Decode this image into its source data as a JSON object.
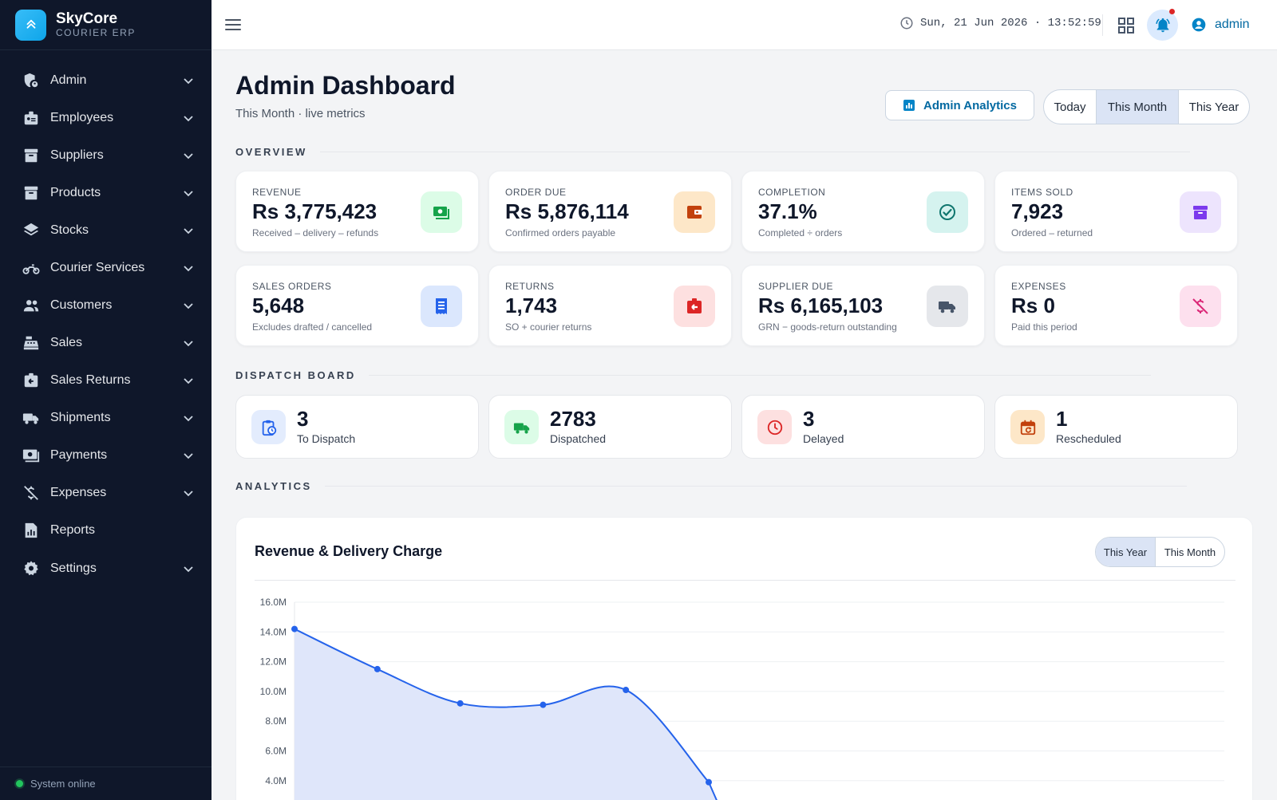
{
  "brand": {
    "name": "SkyCore",
    "sub": "COURIER ERP",
    "logo_icon": "chevrons-up-icon"
  },
  "sidebar": {
    "items": [
      {
        "label": "Admin",
        "icon": "shield-user-icon",
        "has_children": true
      },
      {
        "label": "Employees",
        "icon": "id-badge-icon",
        "has_children": true
      },
      {
        "label": "Suppliers",
        "icon": "archive-box-icon",
        "has_children": true
      },
      {
        "label": "Products",
        "icon": "box-icon",
        "has_children": true
      },
      {
        "label": "Stocks",
        "icon": "layers-icon",
        "has_children": true
      },
      {
        "label": "Courier Services",
        "icon": "motorcycle-icon",
        "has_children": true
      },
      {
        "label": "Customers",
        "icon": "users-icon",
        "has_children": true
      },
      {
        "label": "Sales",
        "icon": "cash-register-icon",
        "has_children": true
      },
      {
        "label": "Sales Returns",
        "icon": "return-box-icon",
        "has_children": true
      },
      {
        "label": "Shipments",
        "icon": "truck-icon",
        "has_children": true
      },
      {
        "label": "Payments",
        "icon": "money-icon",
        "has_children": true
      },
      {
        "label": "Expenses",
        "icon": "no-money-icon",
        "has_children": true
      },
      {
        "label": "Reports",
        "icon": "report-icon",
        "has_children": false
      },
      {
        "label": "Settings",
        "icon": "gear-icon",
        "has_children": true
      }
    ],
    "status": "System online"
  },
  "topbar": {
    "datetime": "Sun, 21 Jun 2026 · 13:52:59",
    "user": "admin"
  },
  "page": {
    "title": "Admin Dashboard",
    "subtitle": "This Month · live metrics",
    "analytics_button": "Admin Analytics",
    "ranges": [
      "Today",
      "This Month",
      "This Year"
    ],
    "active_range": "This Month"
  },
  "sections": {
    "overview": "OVERVIEW",
    "dispatch": "DISPATCH BOARD",
    "analytics": "ANALYTICS"
  },
  "kpis": [
    {
      "label": "REVENUE",
      "value": "Rs 3,775,423",
      "sub": "Received – delivery – refunds",
      "icon": "cash-icon",
      "color": "#16a34a",
      "bg": "#dcfce7"
    },
    {
      "label": "ORDER DUE",
      "value": "Rs 5,876,114",
      "sub": "Confirmed orders payable",
      "icon": "wallet-icon",
      "color": "#c2410c",
      "bg": "#fde7c8"
    },
    {
      "label": "COMPLETION",
      "value": "37.1%",
      "sub": "Completed ÷ orders",
      "icon": "check-circle-icon",
      "color": "#0f766e",
      "bg": "#d5f3ef"
    },
    {
      "label": "ITEMS SOLD",
      "value": "7,923",
      "sub": "Ordered – returned",
      "icon": "archive-icon",
      "color": "#7c3aed",
      "bg": "#ede4fd"
    },
    {
      "label": "SALES ORDERS",
      "value": "5,648",
      "sub": "Excludes drafted / cancelled",
      "icon": "receipt-icon",
      "color": "#2563eb",
      "bg": "#dbe7fd"
    },
    {
      "label": "RETURNS",
      "value": "1,743",
      "sub": "SO + courier returns",
      "icon": "return-icon",
      "color": "#dc2626",
      "bg": "#fde0e0"
    },
    {
      "label": "SUPPLIER DUE",
      "value": "Rs 6,165,103",
      "sub": "GRN − goods-return outstanding",
      "icon": "truck-icon",
      "color": "#475569",
      "bg": "#e5e7eb"
    },
    {
      "label": "EXPENSES",
      "value": "Rs 0",
      "sub": "Paid this period",
      "icon": "no-money-icon",
      "color": "#db2777",
      "bg": "#fde0ee"
    }
  ],
  "dispatch": [
    {
      "value": "3",
      "label": "To Dispatch",
      "icon": "clipboard-clock-icon",
      "color": "#2563eb",
      "bg": "#e3ecfd"
    },
    {
      "value": "2783",
      "label": "Dispatched",
      "icon": "truck-icon",
      "color": "#16a34a",
      "bg": "#dcfce7"
    },
    {
      "value": "3",
      "label": "Delayed",
      "icon": "clock-icon",
      "color": "#dc2626",
      "bg": "#fde0e0"
    },
    {
      "value": "1",
      "label": "Rescheduled",
      "icon": "calendar-refresh-icon",
      "color": "#c2410c",
      "bg": "#fde7c8"
    }
  ],
  "chart": {
    "title": "Revenue & Delivery Charge",
    "ranges": [
      "This Year",
      "This Month"
    ],
    "active_range": "This Year"
  },
  "chart_data": {
    "type": "area",
    "title": "Revenue & Delivery Charge",
    "y_ticks": [
      "16.0M",
      "14.0M",
      "12.0M",
      "10.0M",
      "8.0M",
      "6.0M",
      "4.0M"
    ],
    "ylim": [
      0,
      16000000
    ],
    "grid": true,
    "series": [
      {
        "values": [
          14200000,
          11500000,
          9200000,
          9100000,
          10100000,
          3900000
        ]
      }
    ],
    "colors": {
      "line": "#2563eb",
      "fill": "#dfe6fa"
    }
  }
}
